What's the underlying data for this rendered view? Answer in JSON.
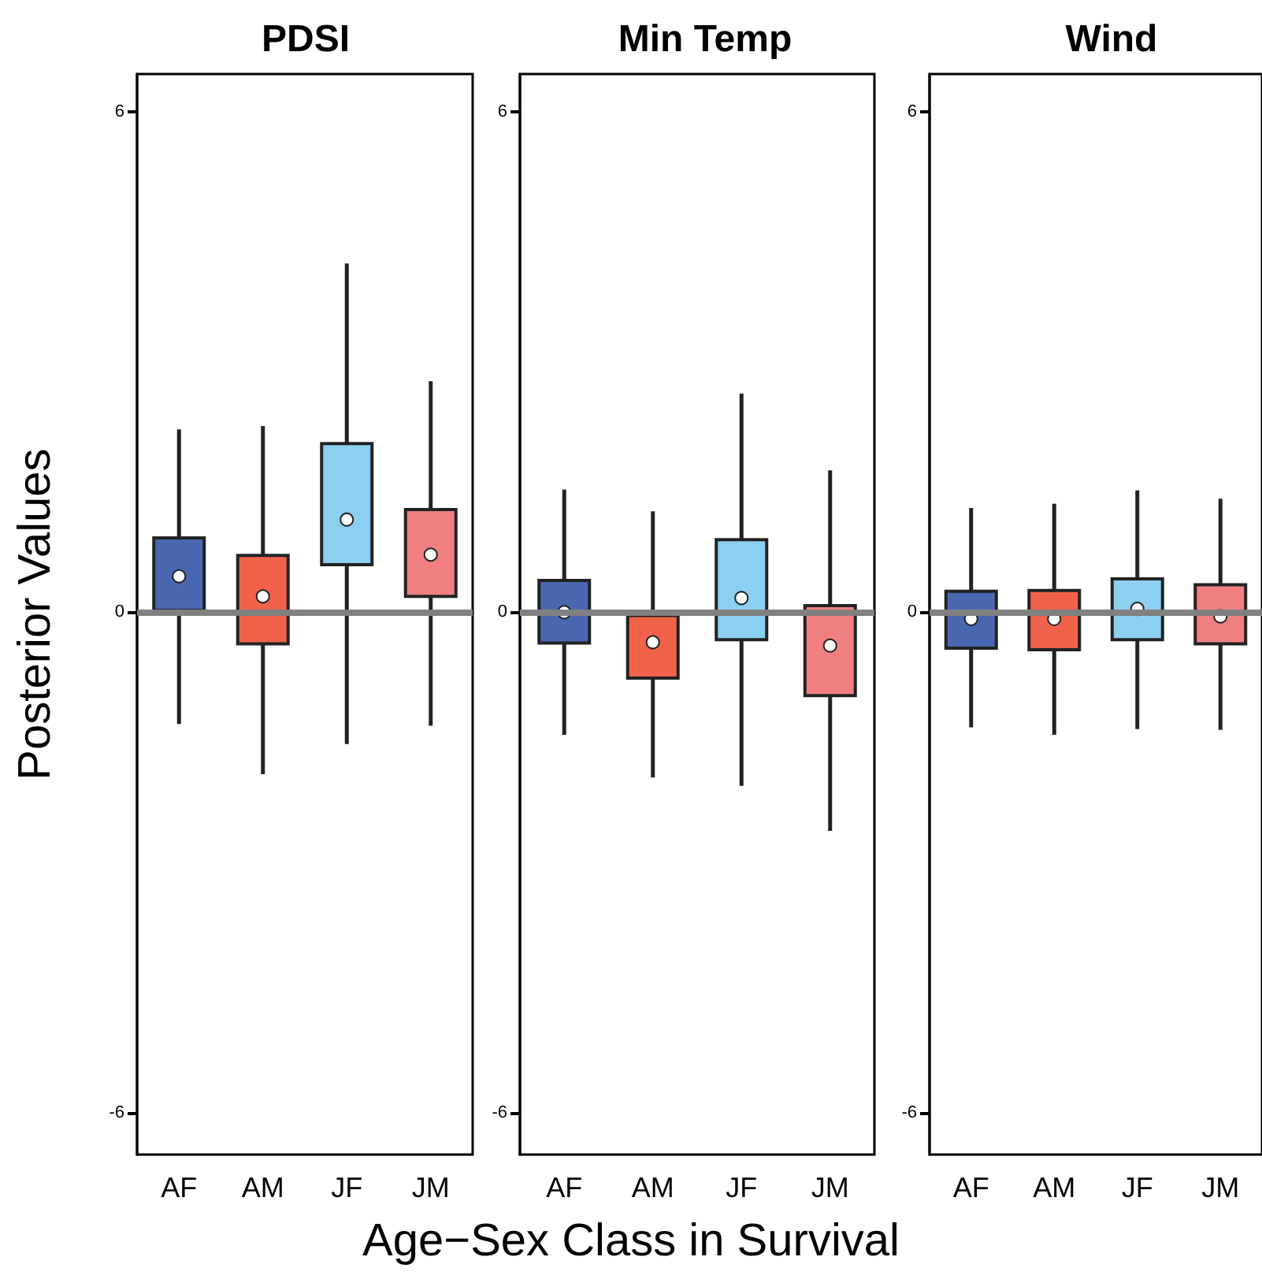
{
  "chart_data": [
    {
      "type": "box",
      "title": "PDSI",
      "ylabel": "Posterior Values",
      "categories": [
        "AF",
        "AM",
        "JF",
        "JM"
      ],
      "colors": [
        "#4a68b0",
        "#f0634a",
        "#8ccff0",
        "#f08080"
      ],
      "ylim": [
        -6.5,
        6.45
      ],
      "yticks": [
        -6,
        0,
        6
      ],
      "grid": false,
      "ref_lines": [
        {
          "axis": "y",
          "value": 0,
          "color": "#808080"
        }
      ],
      "boxes": [
        {
          "low": -1.34,
          "q1": 0.02,
          "median": 0.43,
          "q3": 0.89,
          "high": 2.19
        },
        {
          "low": -1.94,
          "q1": -0.38,
          "median": 0.19,
          "q3": 0.68,
          "high": 2.23
        },
        {
          "low": -1.58,
          "q1": 0.57,
          "median": 1.11,
          "q3": 2.02,
          "high": 4.18
        },
        {
          "low": -1.36,
          "q1": 0.19,
          "median": 0.69,
          "q3": 1.23,
          "high": 2.77
        }
      ]
    },
    {
      "type": "box",
      "title": "Min Temp",
      "xlabel": "Age−Sex Class in Survival",
      "categories": [
        "AF",
        "AM",
        "JF",
        "JM"
      ],
      "colors": [
        "#4a68b0",
        "#f0634a",
        "#8ccff0",
        "#f08080"
      ],
      "ylim": [
        -6.5,
        6.45
      ],
      "yticks": [
        -6,
        0,
        6
      ],
      "grid": false,
      "ref_lines": [
        {
          "axis": "y",
          "value": 0,
          "color": "#808080"
        }
      ],
      "boxes": [
        {
          "low": -1.47,
          "q1": -0.37,
          "median": 0.0,
          "q3": 0.38,
          "high": 1.47
        },
        {
          "low": -1.98,
          "q1": -0.79,
          "median": -0.36,
          "q3": -0.04,
          "high": 1.21
        },
        {
          "low": -2.08,
          "q1": -0.33,
          "median": 0.17,
          "q3": 0.87,
          "high": 2.62
        },
        {
          "low": -2.62,
          "q1": -1.0,
          "median": -0.4,
          "q3": 0.08,
          "high": 1.7
        }
      ]
    },
    {
      "type": "box",
      "title": "Wind",
      "categories": [
        "AF",
        "AM",
        "JF",
        "JM"
      ],
      "colors": [
        "#4a68b0",
        "#f0634a",
        "#8ccff0",
        "#f08080"
      ],
      "ylim": [
        -6.5,
        6.45
      ],
      "yticks": [
        -6,
        0,
        6
      ],
      "grid": false,
      "ref_lines": [
        {
          "axis": "y",
          "value": 0,
          "color": "#808080"
        }
      ],
      "boxes": [
        {
          "low": -1.38,
          "q1": -0.43,
          "median": -0.08,
          "q3": 0.25,
          "high": 1.25
        },
        {
          "low": -1.47,
          "q1": -0.45,
          "median": -0.08,
          "q3": 0.26,
          "high": 1.3
        },
        {
          "low": -1.4,
          "q1": -0.33,
          "median": 0.04,
          "q3": 0.4,
          "high": 1.46
        },
        {
          "low": -1.41,
          "q1": -0.38,
          "median": -0.05,
          "q3": 0.33,
          "high": 1.36
        }
      ]
    }
  ]
}
